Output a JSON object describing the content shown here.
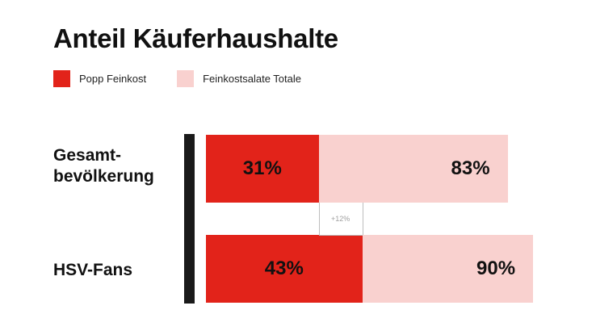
{
  "title": "Anteil Käuferhaushalte",
  "colors": {
    "popp": "#e2231a",
    "totale": "#f9d1cf",
    "axis": "#1a1a1a"
  },
  "legend": [
    {
      "label": "Popp Feinkost",
      "color": "#e2231a"
    },
    {
      "label": "Feinkostsalate Totale",
      "color": "#f9d1cf"
    }
  ],
  "chart_data": {
    "type": "bar",
    "orientation": "horizontal",
    "title": "Anteil Käuferhaushalte",
    "categories": [
      "Gesamt-\nbevölkerung",
      "HSV-Fans"
    ],
    "series": [
      {
        "name": "Popp Feinkost",
        "values": [
          31,
          43
        ],
        "labels": [
          "31%",
          "43%"
        ]
      },
      {
        "name": "Feinkostsalate Totale",
        "values": [
          83,
          90
        ],
        "labels": [
          "83%",
          "90%"
        ]
      }
    ],
    "annotation": "+12%",
    "xlim": [
      0,
      100
    ],
    "grid": false,
    "legend_position": "top-left"
  }
}
